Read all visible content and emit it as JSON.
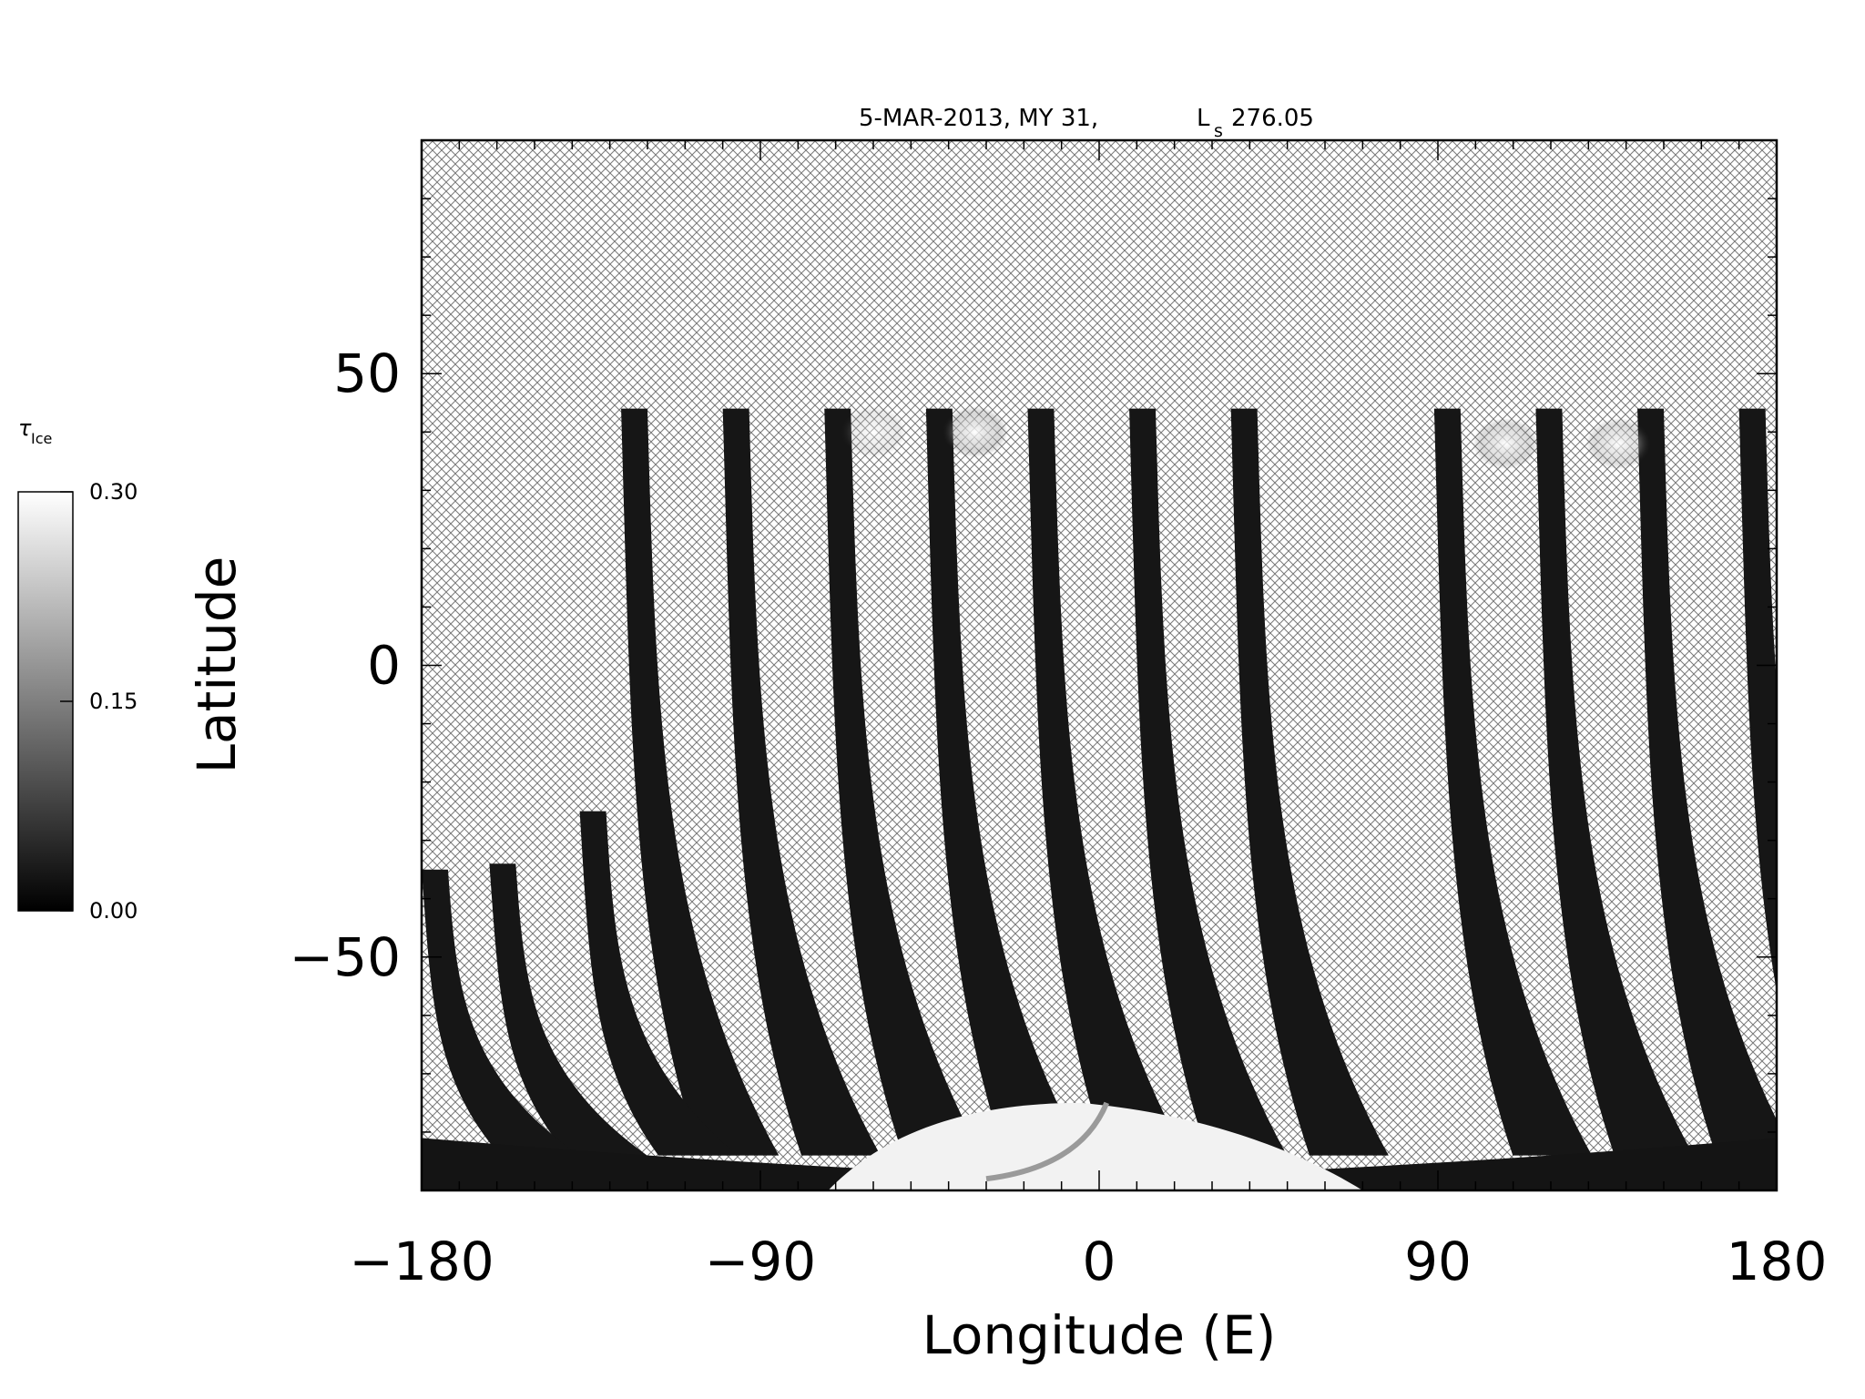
{
  "chart_data": {
    "type": "heatmap",
    "title": "5-MAR-2013, MY 31,",
    "title_ls_main": "L",
    "title_ls_sub": "s",
    "title_ls_value": "276.05",
    "xlabel": "Longitude (E)",
    "ylabel": "Latitude",
    "xlim": [
      -180,
      180
    ],
    "ylim": [
      -90,
      90
    ],
    "x_ticks": [
      -180,
      -90,
      0,
      90,
      180
    ],
    "x_tick_labels": [
      "−180",
      "−90",
      "0",
      "90",
      "180"
    ],
    "y_ticks": [
      50,
      0,
      -50
    ],
    "y_tick_labels": [
      "50",
      "0",
      "−50"
    ],
    "no_data_fill": "crosshatch",
    "colorbar": {
      "label_main": "τ",
      "label_sub": "Ice",
      "min": 0.0,
      "max": 0.3,
      "ticks": [
        0.0,
        0.15,
        0.3
      ],
      "tick_labels": [
        "0.00",
        "0.15",
        "0.30"
      ],
      "colormap": [
        "#000000",
        "#ffffff"
      ]
    },
    "swaths": [
      {
        "top_lon": -127,
        "top_lat": 44
      },
      {
        "top_lon": -100,
        "top_lat": 44
      },
      {
        "top_lon": -73,
        "top_lat": 44
      },
      {
        "top_lon": -46,
        "top_lat": 44
      },
      {
        "top_lon": -19,
        "top_lat": 44
      },
      {
        "top_lon": 8,
        "top_lat": 44
      },
      {
        "top_lon": 35,
        "top_lat": 44
      },
      {
        "top_lon": 89,
        "top_lat": 44
      },
      {
        "top_lon": 116,
        "top_lat": 44
      },
      {
        "top_lon": 143,
        "top_lat": 44
      },
      {
        "top_lon": 170,
        "top_lat": 44
      },
      {
        "top_lon": -138,
        "top_lat": -25
      },
      {
        "top_lon": -162,
        "top_lat": -34
      },
      {
        "top_lon": -180,
        "top_lat": -35
      }
    ],
    "bright_patches": [
      {
        "lon": -33,
        "lat": 40,
        "tau": 0.28
      },
      {
        "lon": 108,
        "lat": 38,
        "tau": 0.26
      },
      {
        "lon": 138,
        "lat": 38,
        "tau": 0.24
      },
      {
        "lon": -60,
        "lat": 40,
        "tau": 0.14
      }
    ],
    "polar_cap": {
      "lat_top": -75,
      "lon_center": -5,
      "tau": 0.3
    }
  }
}
